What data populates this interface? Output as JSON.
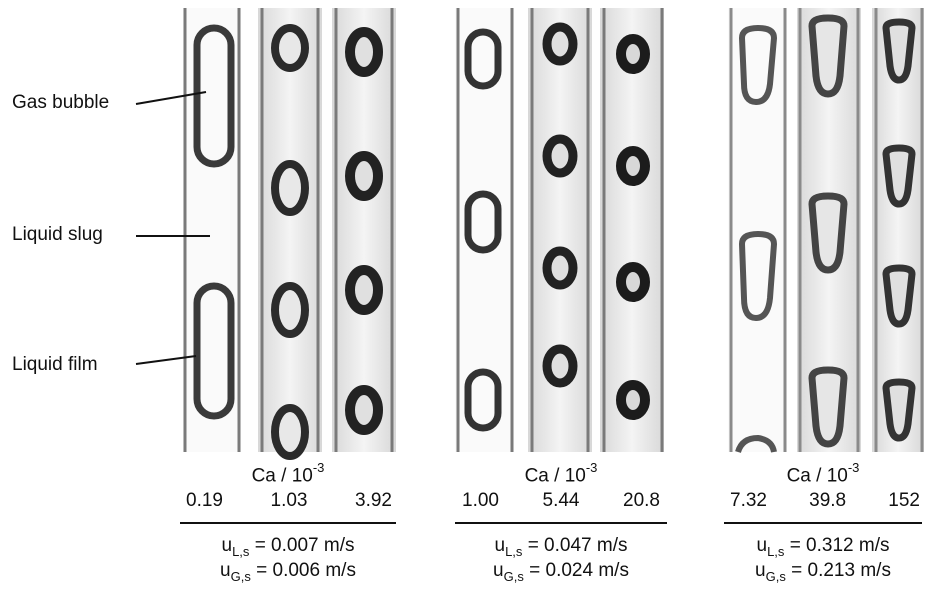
{
  "annotations": {
    "gas_bubble": "Gas bubble",
    "liquid_slug": "Liquid slug",
    "liquid_film": "Liquid film"
  },
  "panels": [
    {
      "ca_label": "Ca / 10",
      "ca_exp": "-3",
      "ca_values": [
        "0.19",
        "1.03",
        "3.92"
      ],
      "ul_prefix": "u",
      "ul_sub": "L,s",
      "ul_value": "= 0.007 m/s",
      "ug_prefix": "u",
      "ug_sub": "G,s",
      "ug_value": "= 0.006 m/s"
    },
    {
      "ca_label": "Ca / 10",
      "ca_exp": "-3",
      "ca_values": [
        "1.00",
        "5.44",
        "20.8"
      ],
      "ul_prefix": "u",
      "ul_sub": "L,s",
      "ul_value": "= 0.047 m/s",
      "ug_prefix": "u",
      "ug_sub": "G,s",
      "ug_value": "= 0.024 m/s"
    },
    {
      "ca_label": "Ca / 10",
      "ca_exp": "-3",
      "ca_values": [
        "7.32",
        "39.8",
        "152"
      ],
      "ul_prefix": "u",
      "ul_sub": "L,s",
      "ul_value": "= 0.312 m/s",
      "ug_prefix": "u",
      "ug_sub": "G,s",
      "ug_value": "= 0.213 m/s"
    }
  ],
  "colors": {
    "channel_wall": "#8c8c8c",
    "bubble_dark": "#2b2b2b",
    "bubble_mid": "#555555",
    "text": "#111111"
  }
}
